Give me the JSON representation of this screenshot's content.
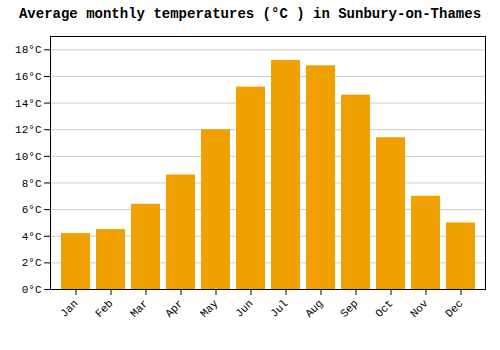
{
  "chart_data": {
    "type": "bar",
    "title": "Average monthly temperatures (°C ) in Sunbury-on-Thames",
    "categories": [
      "Jan",
      "Feb",
      "Mar",
      "Apr",
      "May",
      "Jun",
      "Jul",
      "Aug",
      "Sep",
      "Oct",
      "Nov",
      "Dec"
    ],
    "values": [
      4.2,
      4.5,
      6.4,
      8.6,
      12.0,
      15.2,
      17.2,
      16.8,
      14.6,
      11.4,
      7.0,
      5.0
    ],
    "color": "#F0A000",
    "ylim": [
      0,
      19
    ],
    "yticks": [
      {
        "value": 0,
        "label": "0°C"
      },
      {
        "value": 2,
        "label": "2°C"
      },
      {
        "value": 4,
        "label": "4°C"
      },
      {
        "value": 6,
        "label": "6°C"
      },
      {
        "value": 8,
        "label": "8°C"
      },
      {
        "value": 10,
        "label": "10°C"
      },
      {
        "value": 12,
        "label": "12°C"
      },
      {
        "value": 14,
        "label": "14°C"
      },
      {
        "value": 16,
        "label": "16°C"
      },
      {
        "value": 18,
        "label": "18°C"
      }
    ],
    "grid": true
  }
}
